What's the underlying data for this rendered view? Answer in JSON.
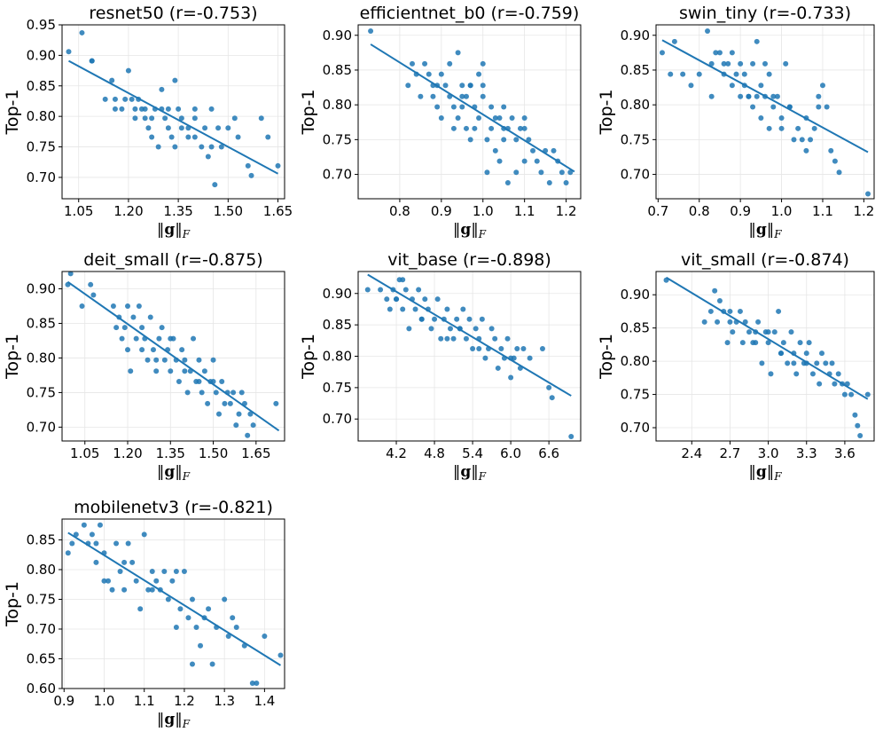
{
  "colors": {
    "point": "#1f77b4",
    "line": "#1f77b4",
    "grid": "#e6e6e6"
  },
  "chart_data": [
    {
      "type": "scatter",
      "model": "resnet50",
      "r": "-0.753",
      "title": "resnet50 (r=-0.753)",
      "xlabel": "‖g‖F",
      "ylabel": "Top-1",
      "xlim": [
        1.0,
        1.67
      ],
      "ylim": [
        0.665,
        0.95
      ],
      "xticks": [
        "1.05",
        "1.20",
        "1.35",
        "1.50",
        "1.65"
      ],
      "yticks": [
        "0.70",
        "0.75",
        "0.80",
        "0.85",
        "0.90",
        "0.95"
      ],
      "fit": {
        "x": [
          1.02,
          1.65
        ],
        "y": [
          0.891,
          0.706
        ]
      },
      "x": [
        1.02,
        1.06,
        1.09,
        1.09,
        1.13,
        1.15,
        1.16,
        1.16,
        1.18,
        1.19,
        1.2,
        1.21,
        1.22,
        1.22,
        1.23,
        1.24,
        1.25,
        1.26,
        1.27,
        1.27,
        1.28,
        1.29,
        1.3,
        1.31,
        1.32,
        1.32,
        1.33,
        1.34,
        1.34,
        1.36,
        1.36,
        1.38,
        1.38,
        1.4,
        1.4,
        1.42,
        1.43,
        1.44,
        1.45,
        1.46,
        1.47,
        1.48,
        1.5,
        1.52,
        1.53,
        1.56,
        1.57,
        1.6,
        1.62,
        1.65,
        1.35,
        1.45,
        1.25,
        1.4,
        1.3
      ],
      "y": [
        0.906,
        0.937,
        0.891,
        0.891,
        0.828,
        0.859,
        0.812,
        0.828,
        0.812,
        0.828,
        0.875,
        0.828,
        0.812,
        0.797,
        0.828,
        0.812,
        0.812,
        0.781,
        0.766,
        0.797,
        0.812,
        0.75,
        0.844,
        0.797,
        0.781,
        0.812,
        0.766,
        0.859,
        0.75,
        0.781,
        0.797,
        0.781,
        0.766,
        0.766,
        0.812,
        0.75,
        0.781,
        0.734,
        0.75,
        0.688,
        0.781,
        0.75,
        0.781,
        0.797,
        0.766,
        0.719,
        0.703,
        0.797,
        0.766,
        0.719,
        0.812,
        0.812,
        0.797,
        0.797,
        0.812
      ]
    },
    {
      "type": "scatter",
      "model": "efficientnet_b0",
      "r": "-0.759",
      "title": "efficientnet_b0 (r=-0.759)",
      "xlabel": "‖g‖F",
      "ylabel": "Top-1",
      "xlim": [
        0.7,
        1.235
      ],
      "ylim": [
        0.665,
        0.915
      ],
      "xticks": [
        "0.8",
        "0.9",
        "1.0",
        "1.1",
        "1.2"
      ],
      "yticks": [
        "0.70",
        "0.75",
        "0.80",
        "0.85",
        "0.90"
      ],
      "fit": {
        "x": [
          0.73,
          1.22
        ],
        "y": [
          0.887,
          0.704
        ]
      },
      "x": [
        0.73,
        0.82,
        0.83,
        0.84,
        0.85,
        0.86,
        0.87,
        0.88,
        0.88,
        0.89,
        0.9,
        0.9,
        0.91,
        0.92,
        0.92,
        0.93,
        0.93,
        0.94,
        0.94,
        0.95,
        0.95,
        0.96,
        0.96,
        0.97,
        0.97,
        0.98,
        0.98,
        0.99,
        0.99,
        1.0,
        1.0,
        1.01,
        1.01,
        1.02,
        1.02,
        1.03,
        1.03,
        1.04,
        1.04,
        1.05,
        1.05,
        1.06,
        1.06,
        1.07,
        1.08,
        1.08,
        1.09,
        1.1,
        1.1,
        1.11,
        1.12,
        1.13,
        1.14,
        1.15,
        1.16,
        1.17,
        1.18,
        1.19,
        1.2,
        1.21,
        0.89,
        0.95,
        0.97,
        1.0,
        1.05,
        1.1
      ],
      "y": [
        0.906,
        0.828,
        0.859,
        0.844,
        0.812,
        0.859,
        0.844,
        0.812,
        0.828,
        0.797,
        0.844,
        0.781,
        0.828,
        0.812,
        0.859,
        0.797,
        0.766,
        0.875,
        0.781,
        0.828,
        0.797,
        0.812,
        0.766,
        0.828,
        0.75,
        0.797,
        0.766,
        0.844,
        0.781,
        0.859,
        0.812,
        0.703,
        0.75,
        0.766,
        0.797,
        0.781,
        0.734,
        0.781,
        0.719,
        0.75,
        0.797,
        0.766,
        0.688,
        0.781,
        0.75,
        0.703,
        0.766,
        0.719,
        0.781,
        0.75,
        0.734,
        0.719,
        0.703,
        0.734,
        0.688,
        0.734,
        0.719,
        0.703,
        0.688,
        0.703,
        0.828,
        0.812,
        0.828,
        0.828,
        0.766,
        0.766
      ]
    },
    {
      "type": "scatter",
      "model": "swin_tiny",
      "r": "-0.733",
      "title": "swin_tiny (r=-0.733)",
      "xlabel": "‖g‖F",
      "ylabel": "Top-1",
      "xlim": [
        0.695,
        1.225
      ],
      "ylim": [
        0.665,
        0.915
      ],
      "xticks": [
        "0.7",
        "0.8",
        "0.9",
        "1.0",
        "1.1",
        "1.2"
      ],
      "yticks": [
        "0.70",
        "0.75",
        "0.80",
        "0.85",
        "0.90"
      ],
      "fit": {
        "x": [
          0.71,
          1.21
        ],
        "y": [
          0.893,
          0.732
        ]
      },
      "x": [
        0.71,
        0.73,
        0.74,
        0.76,
        0.78,
        0.8,
        0.82,
        0.83,
        0.83,
        0.84,
        0.85,
        0.86,
        0.87,
        0.88,
        0.88,
        0.89,
        0.9,
        0.9,
        0.91,
        0.91,
        0.92,
        0.93,
        0.93,
        0.94,
        0.94,
        0.95,
        0.95,
        0.96,
        0.96,
        0.97,
        0.97,
        0.98,
        0.99,
        1.0,
        1.0,
        1.01,
        1.02,
        1.03,
        1.04,
        1.05,
        1.06,
        1.06,
        1.07,
        1.08,
        1.09,
        1.1,
        1.11,
        1.12,
        1.13,
        1.14,
        1.21,
        0.86,
        0.92,
        0.98,
        1.02,
        1.09
      ],
      "y": [
        0.875,
        0.844,
        0.891,
        0.844,
        0.828,
        0.844,
        0.906,
        0.812,
        0.859,
        0.875,
        0.875,
        0.844,
        0.859,
        0.828,
        0.875,
        0.844,
        0.859,
        0.812,
        0.844,
        0.828,
        0.812,
        0.859,
        0.797,
        0.891,
        0.812,
        0.828,
        0.781,
        0.859,
        0.812,
        0.844,
        0.766,
        0.797,
        0.812,
        0.781,
        0.766,
        0.859,
        0.797,
        0.75,
        0.766,
        0.75,
        0.781,
        0.734,
        0.75,
        0.766,
        0.797,
        0.828,
        0.797,
        0.734,
        0.719,
        0.703,
        0.672,
        0.859,
        0.812,
        0.812,
        0.797,
        0.812
      ]
    },
    {
      "type": "scatter",
      "model": "deit_small",
      "r": "-0.875",
      "title": "deit_small (r=-0.875)",
      "xlabel": "‖g‖F",
      "ylabel": "Top-1",
      "xlim": [
        0.97,
        1.75
      ],
      "ylim": [
        0.68,
        0.925
      ],
      "xticks": [
        "1.05",
        "1.20",
        "1.35",
        "1.50",
        "1.65"
      ],
      "yticks": [
        "0.70",
        "0.75",
        "0.80",
        "0.85",
        "0.90"
      ],
      "fit": {
        "x": [
          0.99,
          1.73
        ],
        "y": [
          0.91,
          0.695
        ]
      },
      "x": [
        0.99,
        1.0,
        1.04,
        1.07,
        1.08,
        1.15,
        1.16,
        1.17,
        1.18,
        1.19,
        1.2,
        1.21,
        1.22,
        1.23,
        1.24,
        1.25,
        1.26,
        1.27,
        1.28,
        1.29,
        1.3,
        1.31,
        1.32,
        1.33,
        1.34,
        1.35,
        1.36,
        1.37,
        1.38,
        1.39,
        1.4,
        1.41,
        1.42,
        1.43,
        1.44,
        1.45,
        1.46,
        1.47,
        1.48,
        1.49,
        1.5,
        1.51,
        1.52,
        1.53,
        1.54,
        1.55,
        1.56,
        1.57,
        1.58,
        1.59,
        1.6,
        1.61,
        1.62,
        1.63,
        1.64,
        1.72,
        1.25,
        1.3,
        1.35,
        1.4,
        1.45,
        1.5,
        1.2
      ],
      "y": [
        0.906,
        0.922,
        0.875,
        0.906,
        0.891,
        0.875,
        0.844,
        0.859,
        0.828,
        0.844,
        0.875,
        0.781,
        0.859,
        0.828,
        0.875,
        0.844,
        0.828,
        0.797,
        0.859,
        0.812,
        0.781,
        0.828,
        0.844,
        0.797,
        0.812,
        0.781,
        0.828,
        0.797,
        0.766,
        0.812,
        0.797,
        0.75,
        0.781,
        0.828,
        0.766,
        0.797,
        0.75,
        0.781,
        0.734,
        0.766,
        0.797,
        0.75,
        0.719,
        0.766,
        0.734,
        0.75,
        0.734,
        0.75,
        0.703,
        0.719,
        0.75,
        0.734,
        0.688,
        0.719,
        0.703,
        0.734,
        0.812,
        0.797,
        0.828,
        0.781,
        0.766,
        0.766,
        0.812
      ]
    },
    {
      "type": "scatter",
      "model": "vit_base",
      "r": "-0.898",
      "title": "vit_base (r=-0.898)",
      "xlabel": "‖g‖F",
      "ylabel": "Top-1",
      "xlim": [
        3.6,
        7.1
      ],
      "ylim": [
        0.665,
        0.935
      ],
      "xticks": [
        "4.2",
        "4.8",
        "5.4",
        "6.0",
        "6.6"
      ],
      "yticks": [
        "0.70",
        "0.75",
        "0.80",
        "0.85",
        "0.90"
      ],
      "fit": {
        "x": [
          3.75,
          6.95
        ],
        "y": [
          0.93,
          0.737
        ]
      },
      "x": [
        3.75,
        3.95,
        4.05,
        4.1,
        4.15,
        4.2,
        4.25,
        4.3,
        4.35,
        4.4,
        4.45,
        4.5,
        4.55,
        4.6,
        4.65,
        4.7,
        4.75,
        4.8,
        4.85,
        4.9,
        4.95,
        5.0,
        5.05,
        5.1,
        5.15,
        5.2,
        5.25,
        5.3,
        5.35,
        5.4,
        5.45,
        5.5,
        5.55,
        5.6,
        5.65,
        5.7,
        5.75,
        5.8,
        5.85,
        5.9,
        5.95,
        6.0,
        6.05,
        6.1,
        6.15,
        6.2,
        6.3,
        6.5,
        6.6,
        6.65,
        6.95,
        4.3,
        4.6,
        5.0,
        5.5,
        6.0,
        4.2,
        5.2
      ],
      "y": [
        0.906,
        0.906,
        0.891,
        0.875,
        0.906,
        0.891,
        0.922,
        0.875,
        0.906,
        0.844,
        0.891,
        0.875,
        0.906,
        0.859,
        0.891,
        0.875,
        0.844,
        0.859,
        0.891,
        0.828,
        0.859,
        0.875,
        0.844,
        0.828,
        0.859,
        0.844,
        0.875,
        0.828,
        0.859,
        0.812,
        0.844,
        0.828,
        0.859,
        0.797,
        0.812,
        0.844,
        0.828,
        0.781,
        0.812,
        0.797,
        0.828,
        0.766,
        0.797,
        0.812,
        0.781,
        0.812,
        0.797,
        0.812,
        0.75,
        0.734,
        0.672,
        0.922,
        0.859,
        0.828,
        0.812,
        0.797,
        0.891,
        0.844
      ]
    },
    {
      "type": "scatter",
      "model": "vit_small",
      "r": "-0.874",
      "title": "vit_small (r=-0.874)",
      "xlabel": "‖g‖F",
      "ylabel": "Top-1",
      "xlim": [
        2.12,
        3.83
      ],
      "ylim": [
        0.68,
        0.935
      ],
      "xticks": [
        "2.4",
        "2.7",
        "3.0",
        "3.3",
        "3.6"
      ],
      "yticks": [
        "0.70",
        "0.75",
        "0.80",
        "0.85",
        "0.90"
      ],
      "fit": {
        "x": [
          2.2,
          3.78
        ],
        "y": [
          0.926,
          0.743
        ]
      },
      "x": [
        2.2,
        2.5,
        2.55,
        2.58,
        2.6,
        2.62,
        2.65,
        2.68,
        2.7,
        2.72,
        2.75,
        2.78,
        2.8,
        2.82,
        2.85,
        2.88,
        2.9,
        2.92,
        2.95,
        2.98,
        3.0,
        3.02,
        3.05,
        3.08,
        3.1,
        3.12,
        3.15,
        3.18,
        3.2,
        3.22,
        3.25,
        3.28,
        3.3,
        3.32,
        3.35,
        3.38,
        3.4,
        3.42,
        3.45,
        3.48,
        3.5,
        3.52,
        3.55,
        3.58,
        3.6,
        3.62,
        3.65,
        3.68,
        3.7,
        3.72,
        3.78,
        2.9,
        3.0,
        3.1,
        3.2,
        3.3,
        2.7
      ],
      "y": [
        0.922,
        0.859,
        0.875,
        0.906,
        0.859,
        0.891,
        0.875,
        0.828,
        0.859,
        0.844,
        0.859,
        0.875,
        0.828,
        0.859,
        0.844,
        0.828,
        0.844,
        0.859,
        0.797,
        0.844,
        0.828,
        0.781,
        0.844,
        0.875,
        0.812,
        0.828,
        0.797,
        0.844,
        0.812,
        0.781,
        0.828,
        0.797,
        0.812,
        0.828,
        0.781,
        0.797,
        0.766,
        0.812,
        0.797,
        0.781,
        0.797,
        0.766,
        0.781,
        0.766,
        0.75,
        0.766,
        0.75,
        0.719,
        0.703,
        0.688,
        0.75,
        0.828,
        0.844,
        0.812,
        0.797,
        0.797,
        0.875
      ]
    },
    {
      "type": "scatter",
      "model": "mobilenetv3",
      "r": "-0.821",
      "title": "mobilenetv3 (r=-0.821)",
      "xlabel": "‖g‖F",
      "ylabel": "Top-1",
      "xlim": [
        0.895,
        1.45
      ],
      "ylim": [
        0.6,
        0.885
      ],
      "xticks": [
        "0.9",
        "1.0",
        "1.1",
        "1.2",
        "1.3",
        "1.4"
      ],
      "yticks": [
        "0.60",
        "0.65",
        "0.70",
        "0.75",
        "0.80",
        "0.85"
      ],
      "fit": {
        "x": [
          0.91,
          1.44
        ],
        "y": [
          0.862,
          0.639
        ]
      },
      "x": [
        0.91,
        0.92,
        0.93,
        0.95,
        0.96,
        0.97,
        0.98,
        0.99,
        1.0,
        1.01,
        1.02,
        1.03,
        1.04,
        1.05,
        1.06,
        1.07,
        1.08,
        1.09,
        1.1,
        1.11,
        1.12,
        1.13,
        1.14,
        1.15,
        1.16,
        1.17,
        1.18,
        1.19,
        1.2,
        1.21,
        1.22,
        1.23,
        1.24,
        1.25,
        1.26,
        1.27,
        1.28,
        1.3,
        1.31,
        1.32,
        1.33,
        1.35,
        1.37,
        1.38,
        1.4,
        1.44,
        1.12,
        1.18,
        1.22,
        1.05,
        1.0,
        0.98
      ],
      "y": [
        0.828,
        0.844,
        0.859,
        0.875,
        0.844,
        0.859,
        0.812,
        0.875,
        0.828,
        0.781,
        0.766,
        0.844,
        0.797,
        0.812,
        0.844,
        0.812,
        0.781,
        0.734,
        0.859,
        0.766,
        0.797,
        0.781,
        0.766,
        0.797,
        0.75,
        0.781,
        0.703,
        0.734,
        0.797,
        0.719,
        0.75,
        0.703,
        0.672,
        0.719,
        0.734,
        0.641,
        0.703,
        0.75,
        0.688,
        0.719,
        0.703,
        0.672,
        0.609,
        0.609,
        0.688,
        0.656,
        0.766,
        0.797,
        0.641,
        0.766,
        0.781,
        0.844
      ]
    }
  ]
}
